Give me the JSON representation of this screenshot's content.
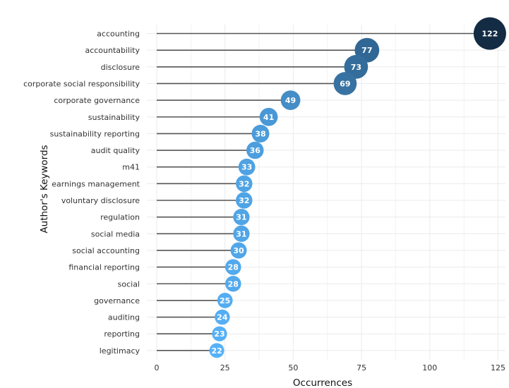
{
  "chart_data": {
    "type": "lollipop",
    "title": "",
    "xlabel": "Occurrences",
    "ylabel": "Author's Keywords",
    "xlim": [
      0,
      127
    ],
    "xticks": [
      0,
      25,
      50,
      75,
      100,
      125
    ],
    "grid": true,
    "legend": "none",
    "categories": [
      "accounting",
      "accountability",
      "disclosure",
      "corporate social responsibility",
      "corporate governance",
      "sustainability",
      "sustainability reporting",
      "audit quality",
      "m41",
      "earnings management",
      "voluntary disclosure",
      "regulation",
      "social media",
      "social accounting",
      "financial reporting",
      "social",
      "governance",
      "auditing",
      "reporting",
      "legitimacy"
    ],
    "values": [
      122,
      77,
      73,
      69,
      49,
      41,
      38,
      36,
      33,
      32,
      32,
      31,
      31,
      30,
      28,
      28,
      25,
      24,
      23,
      22
    ],
    "colors": {
      "high": "#132B43",
      "low": "#56B1F7",
      "stem": "#555555",
      "grid": "#ebebeb"
    }
  }
}
